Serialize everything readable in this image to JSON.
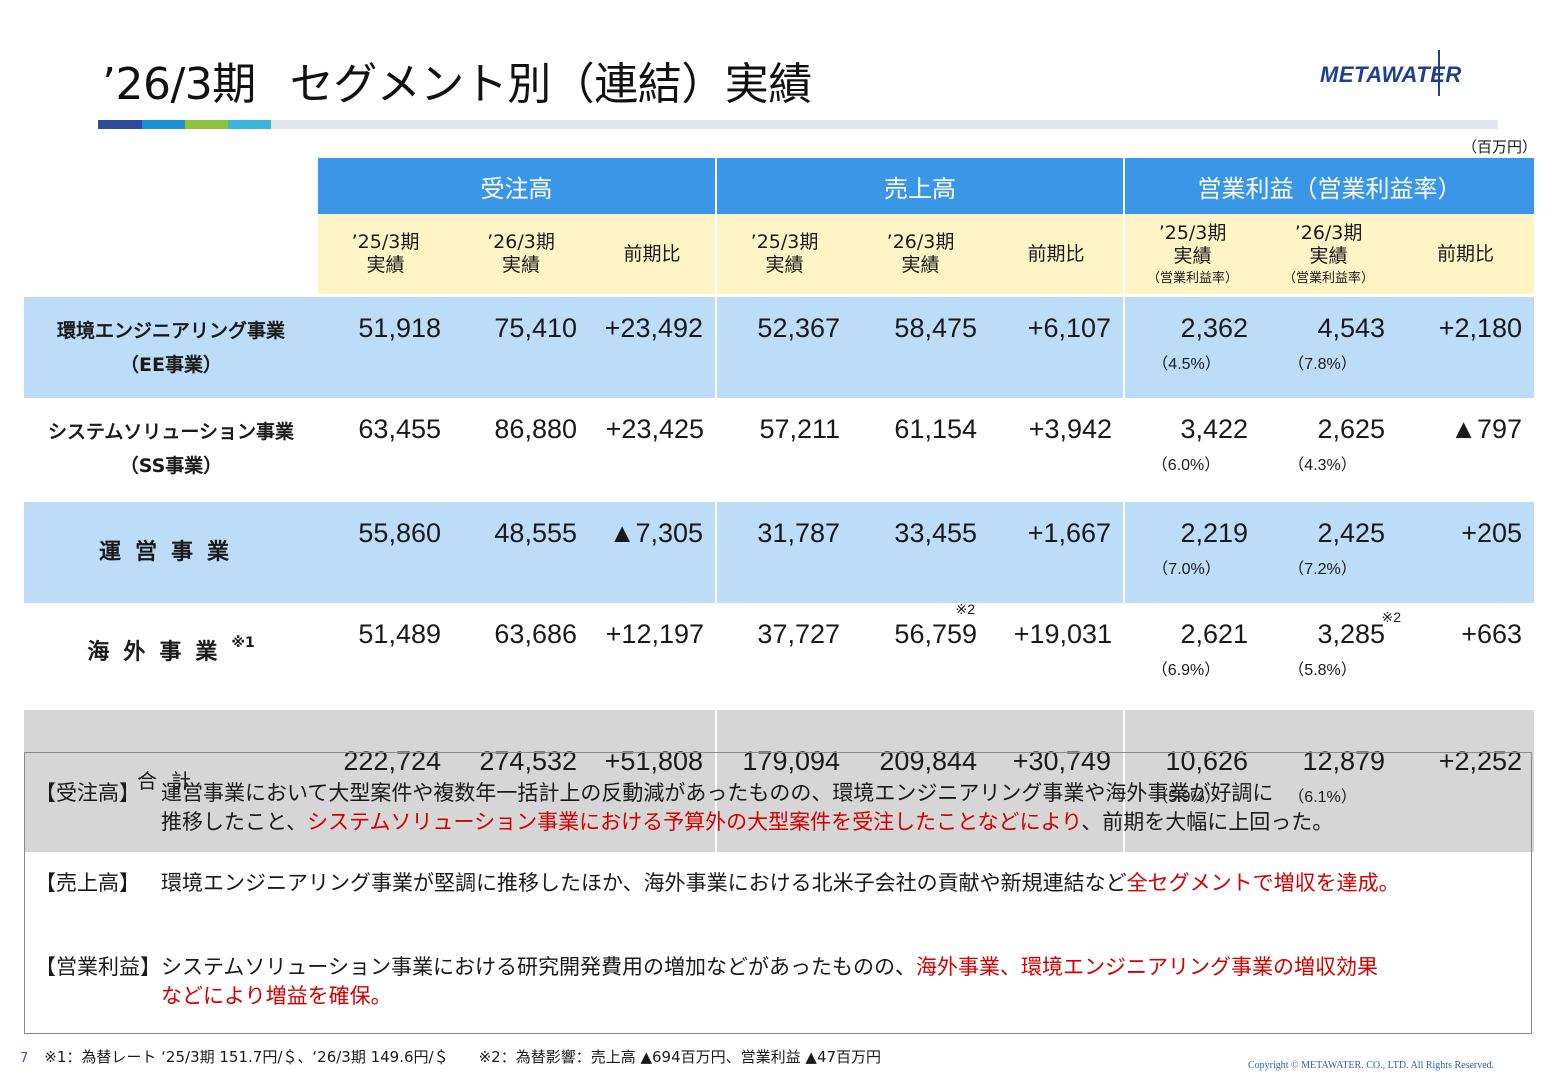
{
  "header": {
    "title_period": "’26/3期",
    "title_main": "セグメント別（連結）実績",
    "logo_text": "METAWATER",
    "unit": "（百万円）",
    "stripe_colors": [
      "#2e4b9c",
      "#1c8fd6",
      "#8fc23c",
      "#3ab5de",
      "#e3e8ee"
    ]
  },
  "table": {
    "groups": [
      "受注高",
      "売上高",
      "営業利益（営業利益率）"
    ],
    "subheaders": {
      "orders": [
        [
          "’25/3期",
          "実績"
        ],
        [
          "’26/3期",
          "実績"
        ],
        [
          "前期比"
        ]
      ],
      "sales": [
        [
          "’25/3期",
          "実績"
        ],
        [
          "’26/3期",
          "実績"
        ],
        [
          "前期比"
        ]
      ],
      "profit": [
        [
          "’25/3期",
          "実績",
          "（営業利益率）"
        ],
        [
          "’26/3期",
          "実績",
          "（営業利益率）"
        ],
        [
          "前期比"
        ]
      ]
    },
    "rows": [
      {
        "name1": "環境エンジニアリング事業",
        "name2": "（EE事業）",
        "orders": [
          "51,918",
          "75,410",
          "+23,492"
        ],
        "sales": [
          "52,367",
          "58,475",
          "+6,107"
        ],
        "profit": [
          "2,362",
          "4,543",
          "+2,180"
        ],
        "rates": [
          "（4.5%）",
          "（7.8%）"
        ]
      },
      {
        "name1": "システムソリューション事業",
        "name2": "（SS事業）",
        "orders": [
          "63,455",
          "86,880",
          "+23,425"
        ],
        "sales": [
          "57,211",
          "61,154",
          "+3,942"
        ],
        "profit": [
          "3,422",
          "2,625",
          "▲797"
        ],
        "rates": [
          "（6.0%）",
          "（4.3%）"
        ]
      },
      {
        "name1": "運営事業",
        "orders": [
          "55,860",
          "48,555",
          "▲7,305"
        ],
        "sales": [
          "31,787",
          "33,455",
          "+1,667"
        ],
        "profit": [
          "2,219",
          "2,425",
          "+205"
        ],
        "rates": [
          "（7.0%）",
          "（7.2%）"
        ]
      },
      {
        "name1": "海外事業",
        "note": "※1",
        "orders": [
          "51,489",
          "63,686",
          "+12,197"
        ],
        "sales": [
          "37,727",
          "56,759",
          "+19,031"
        ],
        "sales_note": "※2",
        "profit": [
          "2,621",
          "3,285",
          "+663"
        ],
        "profit_note": "※2",
        "rates": [
          "（6.9%）",
          "（5.8%）"
        ]
      },
      {
        "name1": "合計",
        "orders": [
          "222,724",
          "274,532",
          "+51,808"
        ],
        "sales": [
          "179,094",
          "209,844",
          "+30,749"
        ],
        "profit": [
          "10,626",
          "12,879",
          "+2,252"
        ],
        "rates": [
          "（5.9%）",
          "（6.1%）"
        ]
      }
    ]
  },
  "commentary": {
    "orders": {
      "label": "【受注高】",
      "line1": "運営事業において大型案件や複数年一括計上の反動減があったものの、環境エンジニアリング事業や海外事業が好調に",
      "line2a": "推移したこと、",
      "line2_red": "システムソリューション事業における予算外の大型案件を受注したことなどにより",
      "line2b": "、前期を大幅に上回った。"
    },
    "sales": {
      "label": "【売上高】",
      "line1a": "環境エンジニアリング事業が堅調に推移したほか、海外事業における北米子会社の貢献や新規連結など",
      "line1_red": "全セグメントで増収を達成。"
    },
    "profit": {
      "label": "【営業利益】",
      "line1a": "システムソリューション事業における研究開発費用の増加などがあったものの、",
      "line1_red": "海外事業、環境エンジニアリング事業の増収効果",
      "line2_red": "などにより増益を確保。"
    }
  },
  "footer": {
    "page": "7",
    "note": "※1：為替レート ‘25/3期 151.7円/＄、‘26/3期 149.6円/＄　　※2：為替影響：売上高 ▲694百万円、営業利益 ▲47百万円",
    "copyright": "Copyright © METAWATER. CO., LTD.  All Rights Reserved."
  }
}
